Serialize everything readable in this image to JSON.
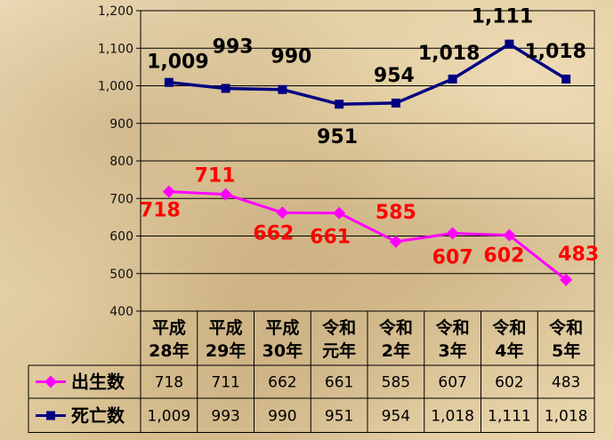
{
  "chart_data": {
    "type": "line",
    "categories": [
      [
        "平成",
        "28年"
      ],
      [
        "平成",
        "29年"
      ],
      [
        "平成",
        "30年"
      ],
      [
        "令和",
        "元年"
      ],
      [
        "令和",
        "2年"
      ],
      [
        "令和",
        "3年"
      ],
      [
        "令和",
        "4年"
      ],
      [
        "令和",
        "5年"
      ]
    ],
    "ylim": [
      400,
      1200
    ],
    "yticks": [
      "400",
      "500",
      "600",
      "700",
      "800",
      "900",
      "1,000",
      "1,100",
      "1,200"
    ],
    "grid": true,
    "legend": "data-table-left",
    "series": [
      {
        "name": "出生数",
        "color": "#ff00ff",
        "label_color": "#ff0000",
        "marker": "diamond",
        "values": [
          718,
          711,
          662,
          661,
          585,
          607,
          602,
          483
        ],
        "labels": [
          "718",
          "711",
          "662",
          "661",
          "585",
          "607",
          "602",
          "483"
        ]
      },
      {
        "name": "死亡数",
        "color": "#000080",
        "label_color": "#000000",
        "marker": "square",
        "values": [
          1009,
          993,
          990,
          951,
          954,
          1018,
          1111,
          1018
        ],
        "labels": [
          "1,009",
          "993",
          "990",
          "951",
          "954",
          "1,018",
          "1,111",
          "1,018"
        ]
      }
    ]
  }
}
